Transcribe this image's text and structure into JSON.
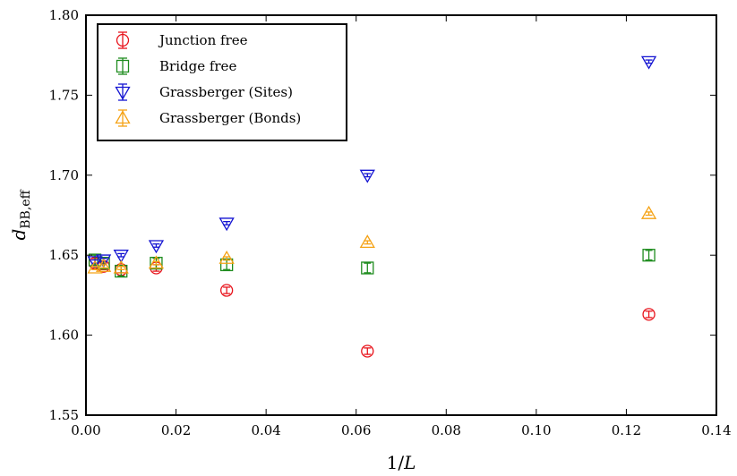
{
  "chart_data": {
    "type": "scatter",
    "xlabel": "1/L",
    "ylabel": "d_BB,eff",
    "xlim": [
      0.0,
      0.14
    ],
    "ylim": [
      1.55,
      1.8
    ],
    "x_ticks": [
      "0.00",
      "0.02",
      "0.04",
      "0.06",
      "0.08",
      "0.10",
      "0.12",
      "0.14"
    ],
    "y_ticks": [
      "1.55",
      "1.60",
      "1.65",
      "1.70",
      "1.75",
      "1.80"
    ],
    "grid": false,
    "legend_position": "top-left",
    "series": [
      {
        "name": "Junction free",
        "marker": "circle",
        "color": "#e8141c",
        "x": [
          0.002,
          0.0039,
          0.0078,
          0.0156,
          0.03125,
          0.0625,
          0.125
        ],
        "y": [
          1.645,
          1.643,
          1.641,
          1.642,
          1.628,
          1.59,
          1.613
        ],
        "err": [
          0.003,
          0.002,
          0.002,
          0.002,
          0.002,
          0.002,
          0.002
        ]
      },
      {
        "name": "Bridge free",
        "marker": "square",
        "color": "#1e8c1e",
        "x": [
          0.002,
          0.0039,
          0.0078,
          0.0156,
          0.03125,
          0.0625,
          0.125
        ],
        "y": [
          1.647,
          1.645,
          1.64,
          1.645,
          1.644,
          1.642,
          1.65
        ],
        "err": [
          0.003,
          0.003,
          0.003,
          0.003,
          0.003,
          0.003,
          0.003
        ]
      },
      {
        "name": "Grassberger (Sites)",
        "marker": "triangle-down",
        "color": "#1414d2",
        "x": [
          0.002,
          0.0039,
          0.0078,
          0.0156,
          0.03125,
          0.0625,
          0.125
        ],
        "y": [
          1.646,
          1.647,
          1.65,
          1.656,
          1.67,
          1.7,
          1.771
        ],
        "err": [
          0.001,
          0.001,
          0.001,
          0.001,
          0.001,
          0.001,
          0.001
        ]
      },
      {
        "name": "Grassberger (Bonds)",
        "marker": "triangle-up",
        "color": "#f5a214",
        "x": [
          0.002,
          0.0039,
          0.0078,
          0.0156,
          0.03125,
          0.0625,
          0.125
        ],
        "y": [
          1.642,
          1.643,
          1.642,
          1.645,
          1.648,
          1.658,
          1.676
        ],
        "err": [
          0.001,
          0.001,
          0.001,
          0.001,
          0.001,
          0.001,
          0.001
        ]
      }
    ]
  }
}
